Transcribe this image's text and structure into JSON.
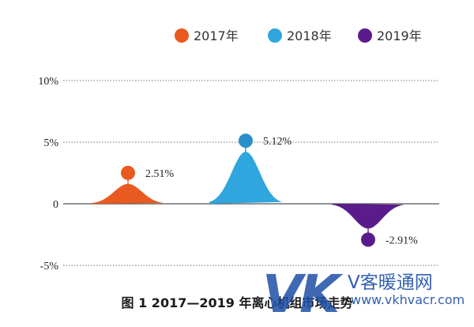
{
  "chart_data": {
    "type": "area",
    "categories": [
      "2017年",
      "2018年",
      "2019年"
    ],
    "values": [
      2.51,
      5.12,
      -2.91
    ],
    "value_labels": [
      "2.51%",
      "5.12%",
      "-2.91%"
    ],
    "colors": [
      "#e85a1f",
      "#2fa6dd",
      "#5a1c8a"
    ],
    "marker_colors": [
      "#e85a1f",
      "#2a8fc9",
      "#5a1c8a"
    ],
    "y_ticks": [
      10,
      5,
      0,
      -5
    ],
    "y_tick_labels": [
      "10%",
      "5%",
      "0",
      "-5%"
    ],
    "ylim": [
      -5,
      10
    ],
    "grid": true,
    "legend_position": "top-right"
  },
  "caption": "图 1   2017—2019 年离心机组市场走势",
  "watermark": {
    "logo": "VK",
    "name": "V客暖通网",
    "url": "www.vkhvacr.com"
  }
}
